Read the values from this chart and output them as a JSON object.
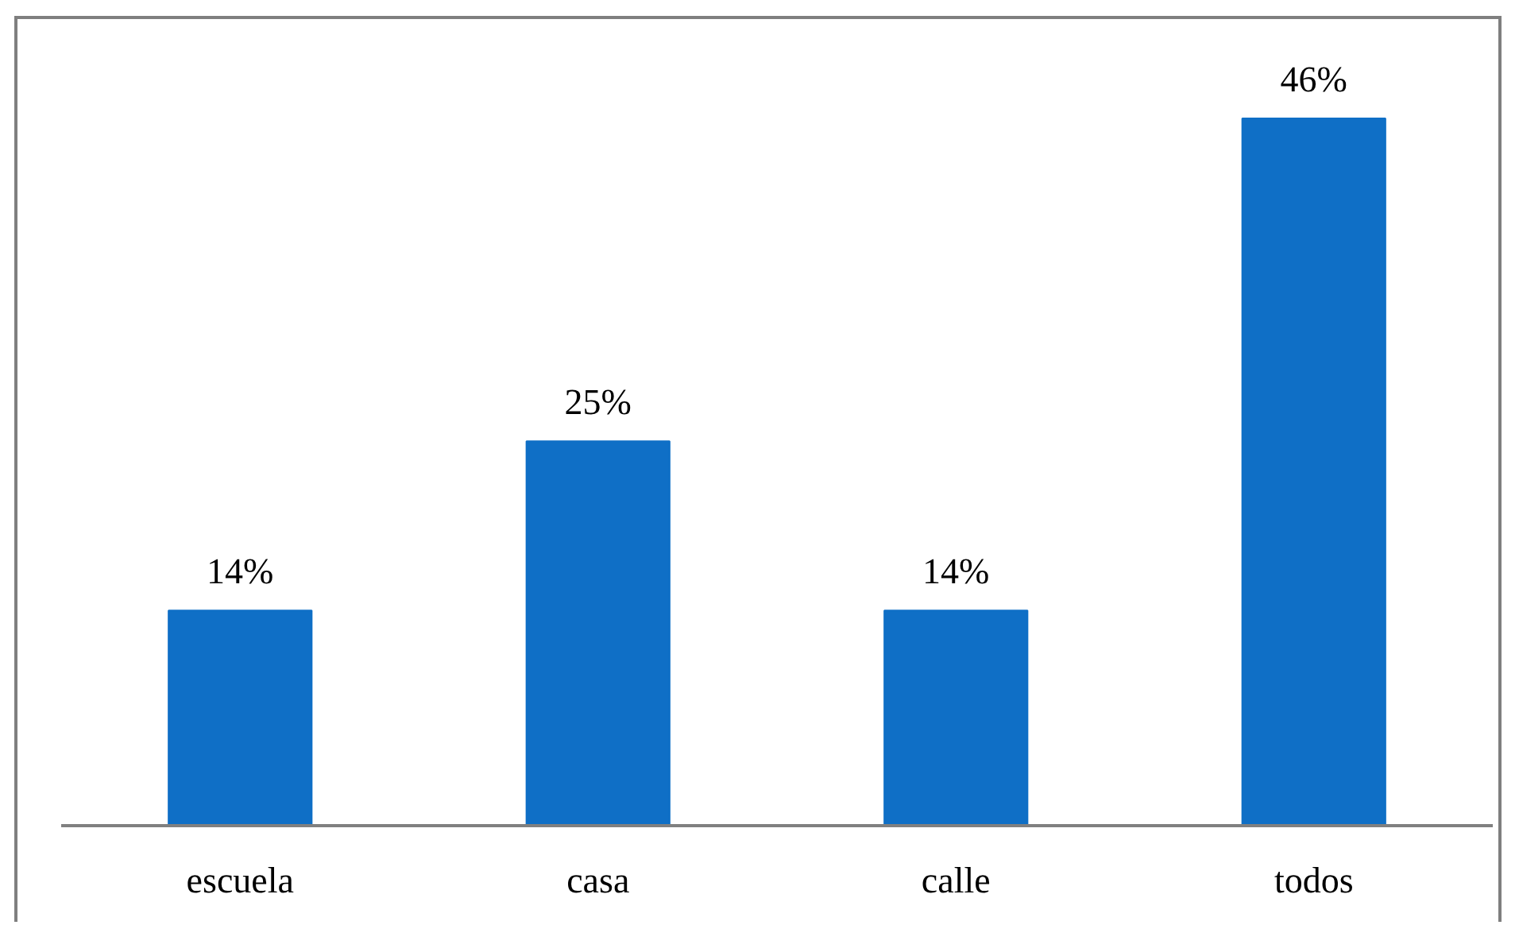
{
  "chart_data": {
    "type": "bar",
    "categories": [
      "escuela",
      "casa",
      "calle",
      "todos"
    ],
    "values": [
      14,
      25,
      14,
      46
    ],
    "color": "#0f6fc6",
    "value_labels": [
      "14%",
      "25%",
      "14%",
      "46%"
    ],
    "grid": false
  }
}
